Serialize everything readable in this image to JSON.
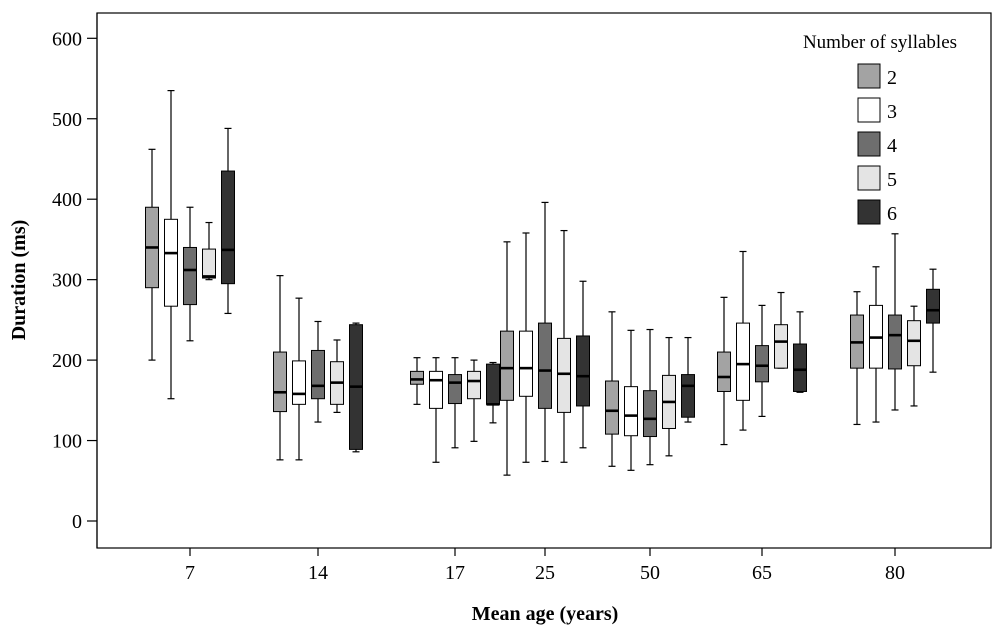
{
  "chart_data": {
    "type": "boxplot",
    "title": "",
    "xlabel": "Mean age (years)",
    "ylabel": "Duration (ms)",
    "ylim": [
      -30,
      630
    ],
    "yticks": [
      0,
      100,
      200,
      300,
      400,
      500,
      600
    ],
    "categories": [
      "7",
      "14",
      "17",
      "25",
      "50",
      "65",
      "80"
    ],
    "grid": false,
    "legend": {
      "title": "Number of syllables",
      "position": "top-right"
    },
    "series": [
      {
        "name": "2",
        "color": "#a3a3a3",
        "boxes": [
          {
            "min": 200,
            "q1": 290,
            "median": 340,
            "q3": 390,
            "max": 462
          },
          {
            "min": 76,
            "q1": 136,
            "median": 160,
            "q3": 210,
            "max": 305
          },
          {
            "min": 145,
            "q1": 170,
            "median": 176,
            "q3": 186,
            "max": 203
          },
          {
            "min": 57,
            "q1": 150,
            "median": 190,
            "q3": 236,
            "max": 347
          },
          {
            "min": 68,
            "q1": 108,
            "median": 137,
            "q3": 174,
            "max": 260
          },
          {
            "min": 95,
            "q1": 161,
            "median": 179,
            "q3": 210,
            "max": 278
          },
          {
            "min": 120,
            "q1": 190,
            "median": 222,
            "q3": 256,
            "max": 285
          }
        ]
      },
      {
        "name": "3",
        "color": "#ffffff",
        "boxes": [
          {
            "min": 152,
            "q1": 267,
            "median": 333,
            "q3": 375,
            "max": 535
          },
          {
            "min": 76,
            "q1": 145,
            "median": 158,
            "q3": 199,
            "max": 277
          },
          {
            "min": 73,
            "q1": 140,
            "median": 175,
            "q3": 186,
            "max": 203
          },
          {
            "min": 73,
            "q1": 155,
            "median": 190,
            "q3": 236,
            "max": 358
          },
          {
            "min": 63,
            "q1": 106,
            "median": 131,
            "q3": 167,
            "max": 237
          },
          {
            "min": 113,
            "q1": 150,
            "median": 195,
            "q3": 246,
            "max": 335
          },
          {
            "min": 123,
            "q1": 190,
            "median": 228,
            "q3": 268,
            "max": 316
          }
        ]
      },
      {
        "name": "4",
        "color": "#6e6e6e",
        "boxes": [
          {
            "min": 224,
            "q1": 269,
            "median": 312,
            "q3": 340,
            "max": 390
          },
          {
            "min": 123,
            "q1": 152,
            "median": 168,
            "q3": 212,
            "max": 248
          },
          {
            "min": 91,
            "q1": 146,
            "median": 172,
            "q3": 182,
            "max": 203
          },
          {
            "min": 74,
            "q1": 140,
            "median": 187,
            "q3": 246,
            "max": 396
          },
          {
            "min": 70,
            "q1": 105,
            "median": 127,
            "q3": 162,
            "max": 238
          },
          {
            "min": 130,
            "q1": 173,
            "median": 193,
            "q3": 218,
            "max": 268
          },
          {
            "min": 138,
            "q1": 189,
            "median": 231,
            "q3": 256,
            "max": 357
          }
        ]
      },
      {
        "name": "5",
        "color": "#e4e4e4",
        "boxes": [
          {
            "min": 300,
            "q1": 302,
            "median": 304,
            "q3": 338,
            "max": 371
          },
          {
            "min": 135,
            "q1": 145,
            "median": 172,
            "q3": 198,
            "max": 225
          },
          {
            "min": 99,
            "q1": 152,
            "median": 174,
            "q3": 186,
            "max": 200
          },
          {
            "min": 73,
            "q1": 135,
            "median": 183,
            "q3": 227,
            "max": 361
          },
          {
            "min": 81,
            "q1": 115,
            "median": 148,
            "q3": 181,
            "max": 228
          },
          {
            "min": 190,
            "q1": 190,
            "median": 223,
            "q3": 244,
            "max": 284
          },
          {
            "min": 143,
            "q1": 193,
            "median": 224,
            "q3": 249,
            "max": 267
          }
        ]
      },
      {
        "name": "6",
        "color": "#333333",
        "boxes": [
          {
            "min": 258,
            "q1": 295,
            "median": 337,
            "q3": 435,
            "max": 488
          },
          {
            "min": 86,
            "q1": 89,
            "median": 167,
            "q3": 244,
            "max": 246
          },
          {
            "min": 122,
            "q1": 145,
            "median": 145,
            "q3": 195,
            "max": 197
          },
          {
            "min": 91,
            "q1": 143,
            "median": 180,
            "q3": 230,
            "max": 298
          },
          {
            "min": 123,
            "q1": 129,
            "median": 168,
            "q3": 182,
            "max": 228
          },
          {
            "min": 160,
            "q1": 161,
            "median": 188,
            "q3": 220,
            "max": 260
          },
          {
            "min": 185,
            "q1": 246,
            "median": 262,
            "q3": 288,
            "max": 313
          }
        ]
      }
    ]
  }
}
